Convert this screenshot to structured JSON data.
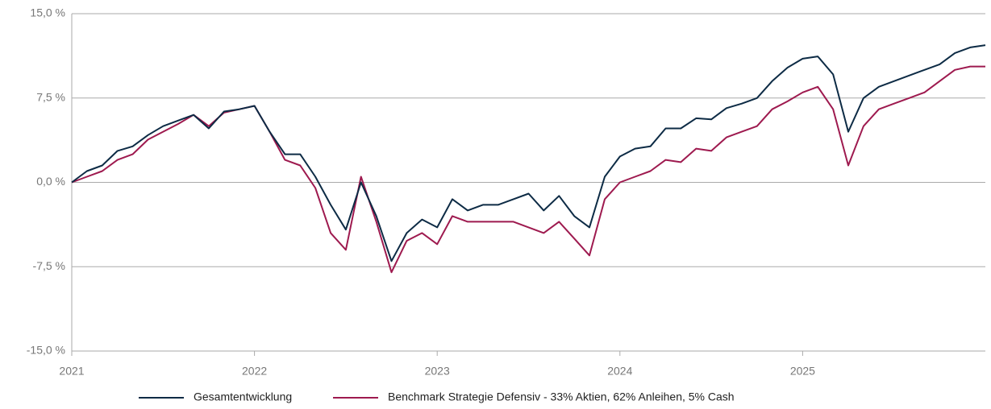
{
  "chart_data": {
    "type": "line",
    "x": [
      2021,
      2021.083,
      2021.167,
      2021.25,
      2021.333,
      2021.417,
      2021.5,
      2021.583,
      2021.667,
      2021.75,
      2021.833,
      2021.917,
      2022,
      2022.083,
      2022.167,
      2022.25,
      2022.333,
      2022.417,
      2022.5,
      2022.583,
      2022.667,
      2022.75,
      2022.833,
      2022.917,
      2023,
      2023.083,
      2023.167,
      2023.25,
      2023.333,
      2023.417,
      2023.5,
      2023.583,
      2023.667,
      2023.75,
      2023.833,
      2023.917,
      2024,
      2024.083,
      2024.167,
      2024.25,
      2024.333,
      2024.417,
      2024.5,
      2024.583,
      2024.667,
      2024.75,
      2024.833,
      2024.917,
      2025,
      2025.083,
      2025.167,
      2025.25,
      2025.333,
      2025.417,
      2025.5,
      2025.583,
      2025.667,
      2025.75,
      2025.833,
      2025.917,
      2026
    ],
    "series": [
      {
        "name": "Gesamtentwicklung",
        "color": "#0d2b45",
        "values": [
          0,
          1.0,
          1.5,
          2.8,
          3.2,
          4.2,
          5.0,
          5.5,
          6.0,
          4.8,
          6.3,
          6.5,
          6.8,
          4.5,
          2.5,
          2.5,
          0.5,
          -2.0,
          -4.2,
          0.0,
          -3.0,
          -7.0,
          -4.5,
          -3.3,
          -4.0,
          -1.5,
          -2.5,
          -2.0,
          -2.0,
          -1.5,
          -1.0,
          -2.5,
          -1.2,
          -3.0,
          -4.0,
          0.5,
          2.3,
          3.0,
          3.2,
          4.8,
          4.8,
          5.7,
          5.6,
          6.6,
          7.0,
          7.5,
          9.0,
          10.2,
          11.0,
          11.2,
          9.6,
          4.5,
          7.5,
          8.5,
          9.0,
          9.5,
          10.0,
          10.5,
          11.5,
          12.0,
          12.2
        ]
      },
      {
        "name": "Benchmark Strategie Defensiv - 33% Aktien, 62% Anleihen, 5% Cash",
        "color": "#9e1a4f",
        "values": [
          0,
          0.5,
          1.0,
          2.0,
          2.5,
          3.8,
          4.5,
          5.2,
          6.0,
          5.0,
          6.2,
          6.5,
          6.8,
          4.5,
          2.0,
          1.5,
          -0.5,
          -4.5,
          -6.0,
          0.5,
          -3.5,
          -8.0,
          -5.2,
          -4.5,
          -5.5,
          -3.0,
          -3.5,
          -3.5,
          -3.5,
          -3.5,
          -4.0,
          -4.5,
          -3.5,
          -5.0,
          -6.5,
          -1.5,
          0.0,
          0.5,
          1.0,
          2.0,
          1.8,
          3.0,
          2.8,
          4.0,
          4.5,
          5.0,
          6.5,
          7.2,
          8.0,
          8.5,
          6.5,
          1.5,
          5.0,
          6.5,
          7.0,
          7.5,
          8.0,
          9.0,
          10.0,
          10.3,
          10.3
        ]
      }
    ],
    "xlim": [
      2021,
      2026
    ],
    "xticks": [
      2021,
      2022,
      2023,
      2024,
      2025
    ],
    "ylim": [
      -15,
      15
    ],
    "yticks": [
      {
        "value": -15,
        "label": "-15,0 %"
      },
      {
        "value": -7.5,
        "label": "-7,5 %"
      },
      {
        "value": 0,
        "label": "0,0 %"
      },
      {
        "value": 7.5,
        "label": "7,5 %"
      },
      {
        "value": 15,
        "label": "15,0 %"
      }
    ],
    "grid": true,
    "legend": "bottom"
  }
}
